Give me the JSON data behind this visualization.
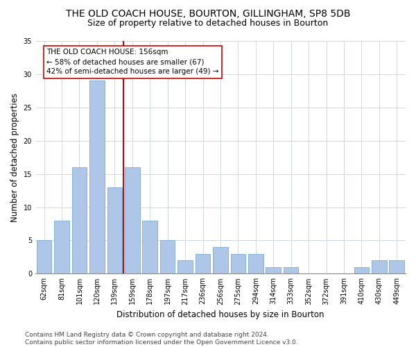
{
  "title": "THE OLD COACH HOUSE, BOURTON, GILLINGHAM, SP8 5DB",
  "subtitle": "Size of property relative to detached houses in Bourton",
  "xlabel": "Distribution of detached houses by size in Bourton",
  "ylabel": "Number of detached properties",
  "categories": [
    "62sqm",
    "81sqm",
    "101sqm",
    "120sqm",
    "139sqm",
    "159sqm",
    "178sqm",
    "197sqm",
    "217sqm",
    "236sqm",
    "256sqm",
    "275sqm",
    "294sqm",
    "314sqm",
    "333sqm",
    "352sqm",
    "372sqm",
    "391sqm",
    "410sqm",
    "430sqm",
    "449sqm"
  ],
  "values": [
    5,
    8,
    16,
    29,
    13,
    16,
    8,
    5,
    2,
    3,
    4,
    3,
    3,
    1,
    1,
    0,
    0,
    0,
    1,
    2,
    2
  ],
  "bar_color": "#aec6e8",
  "bar_edge_color": "#7aaad0",
  "vline_x_index": 5,
  "vline_color": "#cc0000",
  "annotation_text": "THE OLD COACH HOUSE: 156sqm\n← 58% of detached houses are smaller (67)\n42% of semi-detached houses are larger (49) →",
  "annotation_box_facecolor": "#ffffff",
  "annotation_box_edgecolor": "#cc0000",
  "ylim": [
    0,
    35
  ],
  "yticks": [
    0,
    5,
    10,
    15,
    20,
    25,
    30,
    35
  ],
  "fig_bg_color": "#ffffff",
  "plot_bg_color": "#ffffff",
  "grid_color": "#d0d8e8",
  "title_fontsize": 10,
  "subtitle_fontsize": 9,
  "axis_label_fontsize": 8.5,
  "tick_fontsize": 7,
  "annotation_fontsize": 7.5,
  "footnote_fontsize": 6.5,
  "footnote": "Contains HM Land Registry data © Crown copyright and database right 2024.\nContains public sector information licensed under the Open Government Licence v3.0."
}
